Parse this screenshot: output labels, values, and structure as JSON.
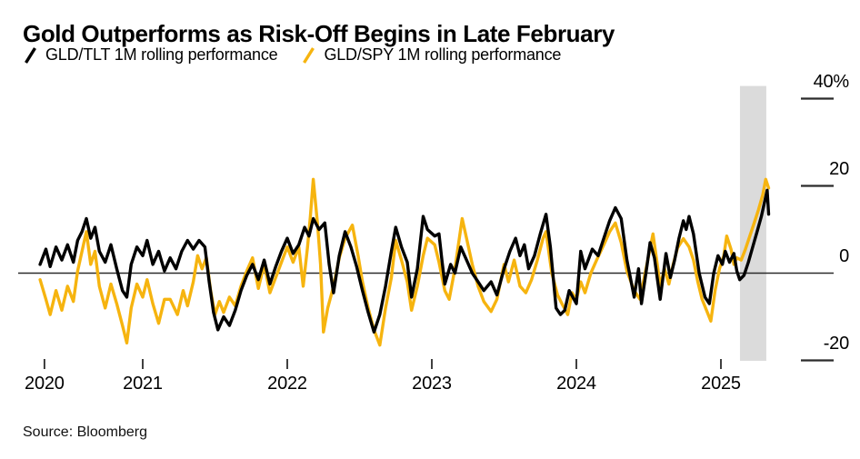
{
  "title": "Gold Outperforms as Risk-Off Begins in Late February",
  "source": "Source: Bloomberg",
  "colors": {
    "black_series": "#000000",
    "yellow_series": "#f6b40f",
    "highlight_band": "#dbdbdb",
    "axis_line": "#2b2b2b",
    "background": "#ffffff"
  },
  "legend": [
    {
      "label": "GLD/TLT 1M rolling performance",
      "color": "#000000"
    },
    {
      "label": "GLD/SPY 1M rolling performance",
      "color": "#f6b40f"
    }
  ],
  "chart_data": {
    "type": "line",
    "title": "Gold Outperforms as Risk-Off Begins in Late February",
    "x_unit": "decimal_year",
    "xlim": [
      2020.29,
      2025.33
    ],
    "ylim": [
      -25,
      42
    ],
    "y_ticks": [
      40,
      20,
      0,
      -20
    ],
    "y_tick_labels": [
      "40%",
      "20",
      "0",
      "-20"
    ],
    "x_ticks": [
      {
        "pos": 2020.32,
        "label": "2020"
      },
      {
        "pos": 2021,
        "label": "2021"
      },
      {
        "pos": 2022,
        "label": "2022"
      },
      {
        "pos": 2023,
        "label": "2023"
      },
      {
        "pos": 2024,
        "label": "2024"
      },
      {
        "pos": 2025,
        "label": "2025"
      }
    ],
    "zero_line": true,
    "grid": false,
    "legend_position": "top-left",
    "highlight_band": {
      "from": 2025.132,
      "to": 2025.314,
      "color": "#dbdbdb",
      "meaning": "risk-off period beginning late February 2025"
    },
    "series": [
      {
        "id": "gld_tlt",
        "name": "GLD/TLT 1M rolling performance",
        "color": "#000000",
        "points": [
          [
            2020.29,
            2
          ],
          [
            2020.33,
            5.5
          ],
          [
            2020.36,
            1.5
          ],
          [
            2020.4,
            6
          ],
          [
            2020.44,
            3
          ],
          [
            2020.48,
            6.5
          ],
          [
            2020.52,
            2.5
          ],
          [
            2020.55,
            7.5
          ],
          [
            2020.58,
            9.5
          ],
          [
            2020.61,
            12.5
          ],
          [
            2020.64,
            8
          ],
          [
            2020.67,
            10.5
          ],
          [
            2020.7,
            5
          ],
          [
            2020.74,
            2.5
          ],
          [
            2020.78,
            6.5
          ],
          [
            2020.82,
            1
          ],
          [
            2020.86,
            -4
          ],
          [
            2020.89,
            -5.5
          ],
          [
            2020.92,
            2
          ],
          [
            2020.96,
            6
          ],
          [
            2021.0,
            4
          ],
          [
            2021.03,
            7.5
          ],
          [
            2021.07,
            2
          ],
          [
            2021.11,
            5
          ],
          [
            2021.15,
            0.5
          ],
          [
            2021.19,
            3.5
          ],
          [
            2021.23,
            1
          ],
          [
            2021.27,
            5
          ],
          [
            2021.31,
            7.5
          ],
          [
            2021.35,
            5.5
          ],
          [
            2021.39,
            7.5
          ],
          [
            2021.43,
            6
          ],
          [
            2021.46,
            -2
          ],
          [
            2021.49,
            -9
          ],
          [
            2021.52,
            -13
          ],
          [
            2021.56,
            -10
          ],
          [
            2021.6,
            -12
          ],
          [
            2021.64,
            -8.5
          ],
          [
            2021.68,
            -4
          ],
          [
            2021.72,
            -0.5
          ],
          [
            2021.76,
            2
          ],
          [
            2021.8,
            -1.5
          ],
          [
            2021.84,
            3
          ],
          [
            2021.88,
            -2.5
          ],
          [
            2021.92,
            1.5
          ],
          [
            2021.96,
            5
          ],
          [
            2022.0,
            8
          ],
          [
            2022.04,
            4.5
          ],
          [
            2022.08,
            6.5
          ],
          [
            2022.12,
            10.5
          ],
          [
            2022.15,
            8.5
          ],
          [
            2022.18,
            12.5
          ],
          [
            2022.22,
            10
          ],
          [
            2022.26,
            11.5
          ],
          [
            2022.29,
            2
          ],
          [
            2022.32,
            -4.5
          ],
          [
            2022.36,
            4
          ],
          [
            2022.4,
            9.5
          ],
          [
            2022.44,
            6
          ],
          [
            2022.48,
            1.5
          ],
          [
            2022.52,
            -4
          ],
          [
            2022.56,
            -9
          ],
          [
            2022.6,
            -13.5
          ],
          [
            2022.64,
            -9.5
          ],
          [
            2022.68,
            -3
          ],
          [
            2022.72,
            5
          ],
          [
            2022.75,
            10.5
          ],
          [
            2022.79,
            6
          ],
          [
            2022.83,
            2.5
          ],
          [
            2022.86,
            -5.5
          ],
          [
            2022.9,
            1
          ],
          [
            2022.94,
            13
          ],
          [
            2022.97,
            10
          ],
          [
            2023.02,
            8.5
          ],
          [
            2023.05,
            9
          ],
          [
            2023.07,
            3
          ],
          [
            2023.09,
            -2.5
          ],
          [
            2023.13,
            2
          ],
          [
            2023.16,
            0
          ],
          [
            2023.2,
            6
          ],
          [
            2023.24,
            3
          ],
          [
            2023.28,
            0
          ],
          [
            2023.32,
            -2
          ],
          [
            2023.36,
            -4
          ],
          [
            2023.41,
            -2
          ],
          [
            2023.45,
            -5
          ],
          [
            2023.5,
            1
          ],
          [
            2023.54,
            5
          ],
          [
            2023.58,
            8
          ],
          [
            2023.61,
            4
          ],
          [
            2023.64,
            6.5
          ],
          [
            2023.67,
            1
          ],
          [
            2023.71,
            4
          ],
          [
            2023.75,
            9
          ],
          [
            2023.79,
            13.5
          ],
          [
            2023.82,
            6
          ],
          [
            2023.86,
            -8
          ],
          [
            2023.89,
            -9.5
          ],
          [
            2023.92,
            -8.5
          ],
          [
            2023.95,
            -4
          ],
          [
            2024.0,
            -7
          ],
          [
            2024.03,
            5
          ],
          [
            2024.06,
            1
          ],
          [
            2024.11,
            5.5
          ],
          [
            2024.15,
            4
          ],
          [
            2024.19,
            8
          ],
          [
            2024.23,
            12
          ],
          [
            2024.27,
            15
          ],
          [
            2024.31,
            12.5
          ],
          [
            2024.35,
            3
          ],
          [
            2024.4,
            -5.5
          ],
          [
            2024.43,
            1
          ],
          [
            2024.45,
            -7
          ],
          [
            2024.49,
            2
          ],
          [
            2024.51,
            7
          ],
          [
            2024.54,
            3.5
          ],
          [
            2024.58,
            -6
          ],
          [
            2024.62,
            4.5
          ],
          [
            2024.65,
            -1
          ],
          [
            2024.68,
            3
          ],
          [
            2024.71,
            8
          ],
          [
            2024.74,
            12
          ],
          [
            2024.76,
            10
          ],
          [
            2024.78,
            13
          ],
          [
            2024.81,
            9
          ],
          [
            2024.85,
            0
          ],
          [
            2024.89,
            -5.5
          ],
          [
            2024.92,
            -7
          ],
          [
            2024.95,
            0
          ],
          [
            2024.98,
            4
          ],
          [
            2025.01,
            2
          ],
          [
            2025.03,
            5
          ],
          [
            2025.06,
            2.5
          ],
          [
            2025.09,
            4.5
          ],
          [
            2025.11,
            0.5
          ],
          [
            2025.13,
            -1.5
          ],
          [
            2025.16,
            -0.5
          ],
          [
            2025.19,
            2.5
          ],
          [
            2025.22,
            6
          ],
          [
            2025.25,
            9.5
          ],
          [
            2025.28,
            13
          ],
          [
            2025.3,
            16
          ],
          [
            2025.32,
            19
          ],
          [
            2025.33,
            13.5
          ]
        ]
      },
      {
        "id": "gld_spy",
        "name": "GLD/SPY 1M rolling performance",
        "color": "#f6b40f",
        "points": [
          [
            2020.29,
            -1.5
          ],
          [
            2020.33,
            -6
          ],
          [
            2020.36,
            -9.5
          ],
          [
            2020.4,
            -4
          ],
          [
            2020.44,
            -8.5
          ],
          [
            2020.48,
            -3
          ],
          [
            2020.52,
            -6.5
          ],
          [
            2020.55,
            0.5
          ],
          [
            2020.58,
            5
          ],
          [
            2020.61,
            9.5
          ],
          [
            2020.64,
            2
          ],
          [
            2020.67,
            5
          ],
          [
            2020.7,
            -3
          ],
          [
            2020.74,
            -8
          ],
          [
            2020.78,
            -2.5
          ],
          [
            2020.82,
            -7
          ],
          [
            2020.86,
            -12
          ],
          [
            2020.89,
            -16
          ],
          [
            2020.92,
            -8
          ],
          [
            2020.96,
            -2.5
          ],
          [
            2021.0,
            -5.5
          ],
          [
            2021.03,
            -1.5
          ],
          [
            2021.07,
            -7
          ],
          [
            2021.11,
            -11.5
          ],
          [
            2021.15,
            -6
          ],
          [
            2021.19,
            -6
          ],
          [
            2021.24,
            -9.5
          ],
          [
            2021.28,
            -4
          ],
          [
            2021.31,
            -7.5
          ],
          [
            2021.35,
            -2
          ],
          [
            2021.38,
            4
          ],
          [
            2021.41,
            1
          ],
          [
            2021.44,
            3.5
          ],
          [
            2021.47,
            -4
          ],
          [
            2021.5,
            -9.5
          ],
          [
            2021.53,
            -6.5
          ],
          [
            2021.56,
            -9
          ],
          [
            2021.6,
            -5.5
          ],
          [
            2021.64,
            -7.5
          ],
          [
            2021.68,
            -3
          ],
          [
            2021.72,
            0.5
          ],
          [
            2021.76,
            3.5
          ],
          [
            2021.8,
            -3.5
          ],
          [
            2021.84,
            2
          ],
          [
            2021.88,
            -4.5
          ],
          [
            2021.92,
            -1
          ],
          [
            2021.96,
            2.5
          ],
          [
            2022.0,
            6
          ],
          [
            2022.04,
            2.5
          ],
          [
            2022.08,
            6
          ],
          [
            2022.11,
            -3
          ],
          [
            2022.14,
            6
          ],
          [
            2022.16,
            13
          ],
          [
            2022.18,
            21.5
          ],
          [
            2022.21,
            11
          ],
          [
            2022.23,
            2
          ],
          [
            2022.25,
            -13.5
          ],
          [
            2022.28,
            -8
          ],
          [
            2022.32,
            -3
          ],
          [
            2022.36,
            3.5
          ],
          [
            2022.4,
            8
          ],
          [
            2022.45,
            11
          ],
          [
            2022.49,
            4
          ],
          [
            2022.52,
            -2
          ],
          [
            2022.56,
            -8
          ],
          [
            2022.6,
            -13
          ],
          [
            2022.64,
            -16.5
          ],
          [
            2022.68,
            -8
          ],
          [
            2022.72,
            -1
          ],
          [
            2022.75,
            7.5
          ],
          [
            2022.79,
            3
          ],
          [
            2022.83,
            -2
          ],
          [
            2022.86,
            -8.5
          ],
          [
            2022.9,
            -3
          ],
          [
            2022.94,
            4
          ],
          [
            2022.97,
            8
          ],
          [
            2023.02,
            6.5
          ],
          [
            2023.05,
            2.5
          ],
          [
            2023.09,
            -4
          ],
          [
            2023.12,
            -6
          ],
          [
            2023.16,
            1
          ],
          [
            2023.21,
            12.5
          ],
          [
            2023.24,
            8
          ],
          [
            2023.28,
            2
          ],
          [
            2023.32,
            -3
          ],
          [
            2023.36,
            -6.5
          ],
          [
            2023.41,
            -8.8
          ],
          [
            2023.45,
            -6
          ],
          [
            2023.5,
            2
          ],
          [
            2023.53,
            -2
          ],
          [
            2023.57,
            3
          ],
          [
            2023.61,
            -3
          ],
          [
            2023.65,
            -4.5
          ],
          [
            2023.69,
            -1.5
          ],
          [
            2023.73,
            3
          ],
          [
            2023.77,
            8
          ],
          [
            2023.79,
            9.5
          ],
          [
            2023.83,
            0
          ],
          [
            2023.87,
            -5
          ],
          [
            2023.9,
            -7
          ],
          [
            2023.94,
            -9.5
          ],
          [
            2023.97,
            -4.5
          ],
          [
            2024.0,
            -6
          ],
          [
            2024.03,
            -2
          ],
          [
            2024.06,
            -4.5
          ],
          [
            2024.1,
            0
          ],
          [
            2024.14,
            3
          ],
          [
            2024.19,
            6.5
          ],
          [
            2024.23,
            9.5
          ],
          [
            2024.27,
            11.5
          ],
          [
            2024.31,
            7
          ],
          [
            2024.35,
            0.5
          ],
          [
            2024.4,
            -4
          ],
          [
            2024.44,
            -6
          ],
          [
            2024.47,
            -1
          ],
          [
            2024.5,
            4
          ],
          [
            2024.53,
            9
          ],
          [
            2024.56,
            2
          ],
          [
            2024.58,
            -3
          ],
          [
            2024.61,
            1
          ],
          [
            2024.64,
            -2.5
          ],
          [
            2024.67,
            2
          ],
          [
            2024.7,
            5.8
          ],
          [
            2024.74,
            7.9
          ],
          [
            2024.78,
            6
          ],
          [
            2024.81,
            3
          ],
          [
            2024.84,
            -2
          ],
          [
            2024.87,
            -6
          ],
          [
            2024.9,
            -8.5
          ],
          [
            2024.93,
            -11
          ],
          [
            2024.96,
            -4
          ],
          [
            2024.99,
            1
          ],
          [
            2025.02,
            4
          ],
          [
            2025.04,
            8.5
          ],
          [
            2025.07,
            5.5
          ],
          [
            2025.09,
            2
          ],
          [
            2025.11,
            3.5
          ],
          [
            2025.14,
            3
          ],
          [
            2025.17,
            5.5
          ],
          [
            2025.2,
            8.5
          ],
          [
            2025.23,
            11.5
          ],
          [
            2025.26,
            14.5
          ],
          [
            2025.29,
            18
          ],
          [
            2025.31,
            21.5
          ],
          [
            2025.33,
            19.5
          ]
        ]
      }
    ]
  }
}
